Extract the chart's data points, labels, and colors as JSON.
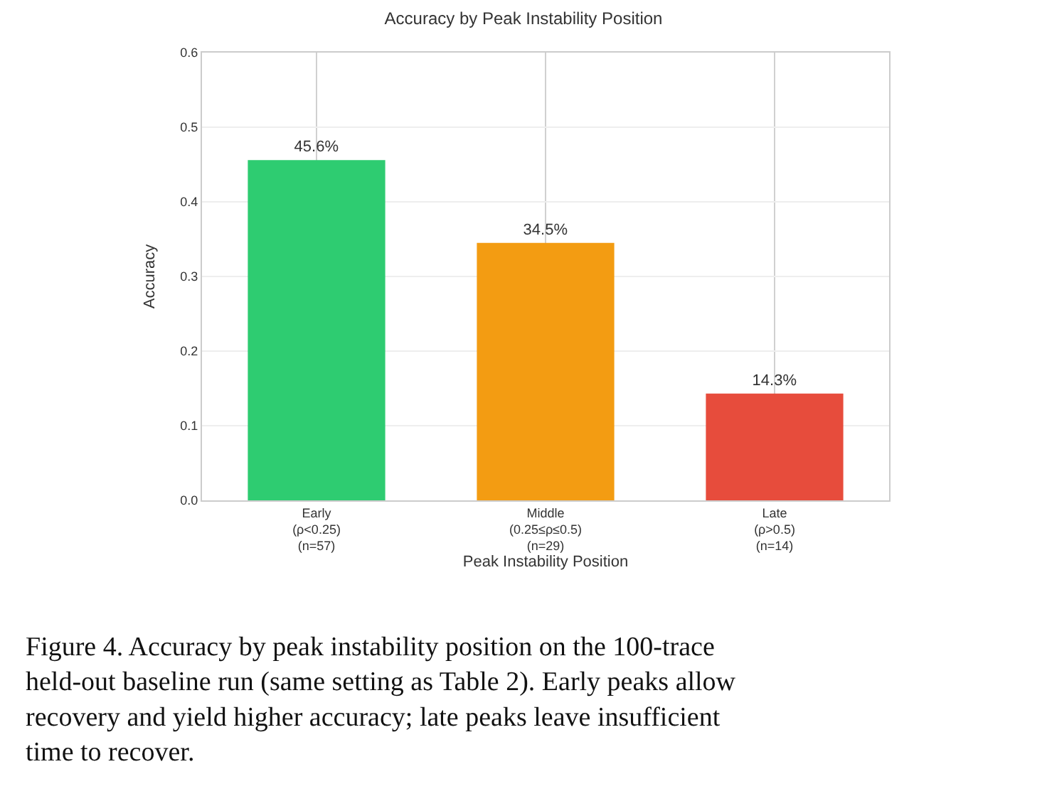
{
  "chart_data": {
    "type": "bar",
    "title": "Accuracy by Peak Instability Position",
    "xlabel": "Peak Instability Position",
    "ylabel": "Accuracy",
    "categories": [
      "Early\n(ρ<0.25)\n(n=57)",
      "Middle\n(0.25≤ρ≤0.5)\n(n=29)",
      "Late\n(ρ>0.5)\n(n=14)"
    ],
    "values": [
      0.456,
      0.345,
      0.143
    ],
    "colors": [
      "#2ecc71",
      "#f39c12",
      "#e74c3c"
    ],
    "value_labels": [
      "45.6%",
      "34.5%",
      "14.3%"
    ],
    "ylim": [
      0,
      0.6
    ],
    "yticks": [
      {
        "value": 0,
        "label": "0.0"
      },
      0.1,
      0.2,
      0.3,
      0.4,
      0.5,
      0.6
    ],
    "grid": true,
    "annotations": [
      "Figure 4. Accuracy by peak instability position on the 100-trace held-out baseline run (same setting as Table 2). Early peaks allow recovery and yield higher accuracy; late peaks leave insufficient time to recover."
    ]
  }
}
